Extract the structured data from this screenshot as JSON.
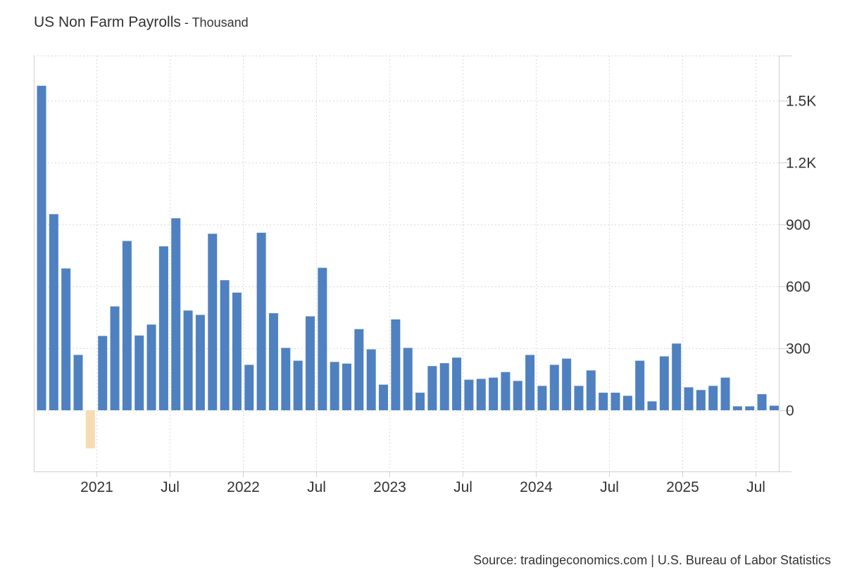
{
  "title": "US Non Farm Payrolls",
  "subtitle": "Thousand",
  "title_separator": " - ",
  "source": "Source: tradingeconomics.com | U.S. Bureau of Labor Statistics",
  "colors": {
    "positive": "#4f81c0",
    "negative": "#f7dcb3",
    "grid": "#d9d9d9",
    "axis": "#d0d0d0"
  },
  "chart_data": {
    "type": "bar",
    "unit": "Thousand",
    "start": "2020-08",
    "values": [
      1572,
      950,
      687,
      268,
      -185,
      360,
      503,
      820,
      362,
      415,
      794,
      930,
      483,
      462,
      855,
      630,
      570,
      220,
      860,
      470,
      302,
      240,
      455,
      690,
      234,
      226,
      393,
      295,
      124,
      440,
      302,
      85,
      214,
      228,
      255,
      148,
      152,
      158,
      185,
      142,
      268,
      118,
      220,
      250,
      118,
      193,
      85,
      85,
      70,
      240,
      43,
      261,
      323,
      111,
      98,
      118,
      158,
      19,
      19,
      78,
      22
    ],
    "y_ticks": [
      0,
      300,
      600,
      900,
      1200,
      1500
    ],
    "y_tick_labels": [
      "0",
      "300",
      "600",
      "900",
      "1.2K",
      "1.5K"
    ],
    "ylim": [
      -300,
      1720
    ],
    "x_ticks": [
      {
        "label": "2021",
        "month_index": 5
      },
      {
        "label": "Jul",
        "month_index": 11
      },
      {
        "label": "2022",
        "month_index": 17
      },
      {
        "label": "Jul",
        "month_index": 23
      },
      {
        "label": "2023",
        "month_index": 29
      },
      {
        "label": "Jul",
        "month_index": 35
      },
      {
        "label": "2024",
        "month_index": 41
      },
      {
        "label": "Jul",
        "month_index": 47
      },
      {
        "label": "2025",
        "month_index": 53
      },
      {
        "label": "Jul",
        "month_index": 59
      }
    ],
    "grid": true,
    "y_axis_side": "right"
  }
}
